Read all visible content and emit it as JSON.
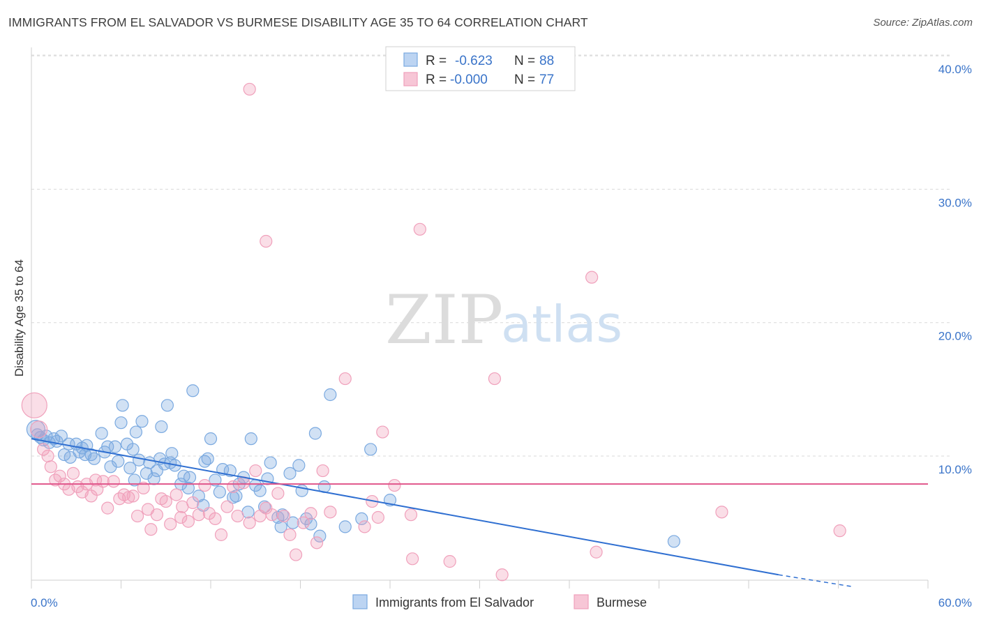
{
  "title": "IMMIGRANTS FROM EL SALVADOR VS BURMESE DISABILITY AGE 35 TO 64 CORRELATION CHART",
  "source": "Source: ZipAtlas.com",
  "watermark": {
    "zip": "ZIP",
    "atlas": "atlas"
  },
  "colors": {
    "blue": "#7aa9e0",
    "blue_line": "#2f6fd1",
    "pink": "#f0a0bb",
    "pink_line": "#e0558a",
    "grid": "#d9d9d9"
  },
  "legend": {
    "rows": [
      {
        "r_label": "R =",
        "r_value": "-0.623",
        "n_label": "N =",
        "n_value": "88"
      },
      {
        "r_label": "R =",
        "r_value": "-0.000",
        "n_label": "N =",
        "n_value": "77"
      }
    ]
  },
  "bottom_legend": [
    "Immigrants from El Salvador",
    "Burmese"
  ],
  "chart_data": {
    "type": "scatter",
    "title": "IMMIGRANTS FROM EL SALVADOR VS BURMESE DISABILITY AGE 35 TO 64 CORRELATION CHART",
    "xlabel": "",
    "ylabel": "Disability Age 35 to 64",
    "xlim": [
      0,
      60
    ],
    "ylim": [
      0,
      42
    ],
    "x_tick_labels": [
      "0.0%",
      "60.0%"
    ],
    "y_ticks": [
      10,
      20,
      30,
      40
    ],
    "y_tick_labels": [
      "10.0%",
      "20.0%",
      "30.0%",
      "40.0%"
    ],
    "grid": true,
    "legend_position": "top-center",
    "series": [
      {
        "name": "Immigrants from El Salvador",
        "color": "#7aa9e0",
        "trend": {
          "x1": 0,
          "y1": 11.3,
          "x2": 50,
          "y2": 1.1,
          "dashed_to_x": 55,
          "dashed_to_y": 0.2
        },
        "points": [
          [
            0.3,
            12.0
          ],
          [
            0.4,
            11.6
          ],
          [
            0.6,
            11.4
          ],
          [
            0.8,
            11.2
          ],
          [
            1.0,
            11.5
          ],
          [
            1.2,
            11.0
          ],
          [
            1.5,
            11.3
          ],
          [
            1.7,
            11.1
          ],
          [
            2.0,
            11.5
          ],
          [
            2.2,
            10.1
          ],
          [
            2.5,
            10.9
          ],
          [
            2.6,
            9.9
          ],
          [
            3.0,
            10.9
          ],
          [
            3.2,
            10.3
          ],
          [
            3.4,
            10.6
          ],
          [
            3.7,
            10.8
          ],
          [
            4.0,
            10.1
          ],
          [
            4.2,
            9.8
          ],
          [
            4.7,
            11.7
          ],
          [
            4.9,
            10.3
          ],
          [
            5.1,
            10.7
          ],
          [
            5.3,
            9.2
          ],
          [
            5.6,
            10.7
          ],
          [
            5.8,
            9.6
          ],
          [
            6.0,
            12.5
          ],
          [
            6.1,
            13.8
          ],
          [
            6.4,
            10.9
          ],
          [
            6.6,
            9.1
          ],
          [
            6.8,
            10.5
          ],
          [
            7.0,
            11.8
          ],
          [
            7.2,
            9.7
          ],
          [
            7.4,
            12.6
          ],
          [
            7.7,
            8.7
          ],
          [
            7.9,
            9.5
          ],
          [
            8.2,
            8.3
          ],
          [
            8.4,
            8.9
          ],
          [
            8.6,
            9.8
          ],
          [
            8.9,
            9.4
          ],
          [
            9.1,
            13.8
          ],
          [
            9.3,
            9.5
          ],
          [
            9.4,
            10.2
          ],
          [
            9.6,
            9.3
          ],
          [
            10.0,
            7.9
          ],
          [
            10.2,
            8.5
          ],
          [
            10.5,
            7.6
          ],
          [
            10.6,
            8.4
          ],
          [
            10.8,
            14.9
          ],
          [
            11.2,
            7.0
          ],
          [
            11.5,
            6.3
          ],
          [
            11.8,
            9.8
          ],
          [
            12.0,
            11.3
          ],
          [
            12.3,
            8.2
          ],
          [
            12.6,
            7.3
          ],
          [
            12.8,
            9.0
          ],
          [
            13.3,
            8.9
          ],
          [
            13.5,
            6.9
          ],
          [
            13.7,
            7.0
          ],
          [
            13.9,
            7.9
          ],
          [
            14.2,
            8.4
          ],
          [
            14.5,
            5.8
          ],
          [
            14.7,
            11.3
          ],
          [
            15.0,
            7.8
          ],
          [
            15.3,
            7.4
          ],
          [
            15.6,
            6.2
          ],
          [
            15.8,
            8.3
          ],
          [
            16.0,
            9.5
          ],
          [
            16.5,
            5.4
          ],
          [
            16.8,
            5.6
          ],
          [
            17.3,
            8.7
          ],
          [
            17.5,
            5.0
          ],
          [
            17.9,
            9.3
          ],
          [
            18.1,
            7.4
          ],
          [
            18.4,
            5.3
          ],
          [
            18.7,
            4.9
          ],
          [
            19.0,
            11.7
          ],
          [
            19.3,
            4.0
          ],
          [
            19.6,
            7.7
          ],
          [
            20.0,
            14.6
          ],
          [
            22.1,
            5.3
          ],
          [
            22.7,
            10.5
          ],
          [
            24.0,
            6.7
          ],
          [
            21.0,
            4.7
          ],
          [
            11.6,
            9.6
          ],
          [
            16.7,
            4.7
          ],
          [
            6.9,
            8.2
          ],
          [
            3.6,
            10.1
          ],
          [
            8.7,
            12.2
          ],
          [
            43.0,
            3.6
          ]
        ]
      },
      {
        "name": "Burmese",
        "color": "#f0a0bb",
        "trend": {
          "x1": 0,
          "y1": 7.9,
          "x2": 60,
          "y2": 7.9
        },
        "points": [
          [
            0.2,
            13.8
          ],
          [
            0.5,
            12.0
          ],
          [
            0.8,
            10.5
          ],
          [
            1.1,
            10.0
          ],
          [
            1.3,
            9.2
          ],
          [
            1.6,
            8.2
          ],
          [
            1.9,
            8.5
          ],
          [
            2.2,
            7.9
          ],
          [
            2.5,
            7.5
          ],
          [
            2.8,
            8.7
          ],
          [
            3.1,
            7.7
          ],
          [
            3.4,
            7.3
          ],
          [
            3.7,
            7.9
          ],
          [
            4.0,
            7.0
          ],
          [
            4.4,
            7.5
          ],
          [
            4.8,
            8.1
          ],
          [
            5.1,
            6.1
          ],
          [
            5.5,
            8.1
          ],
          [
            5.9,
            6.8
          ],
          [
            6.2,
            7.1
          ],
          [
            6.5,
            6.9
          ],
          [
            6.8,
            7.0
          ],
          [
            7.1,
            5.5
          ],
          [
            7.5,
            7.6
          ],
          [
            7.8,
            6.0
          ],
          [
            8.0,
            4.5
          ],
          [
            8.4,
            5.6
          ],
          [
            8.7,
            6.8
          ],
          [
            9.0,
            6.6
          ],
          [
            9.3,
            4.9
          ],
          [
            9.7,
            7.1
          ],
          [
            10.1,
            6.2
          ],
          [
            10.5,
            5.1
          ],
          [
            10.8,
            6.5
          ],
          [
            11.2,
            5.6
          ],
          [
            11.6,
            7.8
          ],
          [
            11.9,
            5.7
          ],
          [
            12.3,
            5.3
          ],
          [
            12.7,
            4.1
          ],
          [
            13.1,
            6.2
          ],
          [
            13.5,
            7.7
          ],
          [
            13.8,
            5.5
          ],
          [
            14.2,
            8.0
          ],
          [
            14.6,
            5.0
          ],
          [
            15.0,
            8.9
          ],
          [
            15.3,
            5.5
          ],
          [
            15.7,
            6.1
          ],
          [
            16.1,
            5.6
          ],
          [
            16.5,
            7.2
          ],
          [
            16.9,
            5.5
          ],
          [
            17.3,
            4.1
          ],
          [
            17.7,
            2.6
          ],
          [
            18.2,
            5.0
          ],
          [
            18.7,
            5.7
          ],
          [
            19.1,
            3.5
          ],
          [
            19.5,
            8.9
          ],
          [
            20.0,
            5.8
          ],
          [
            21.0,
            15.8
          ],
          [
            22.3,
            4.7
          ],
          [
            22.8,
            6.6
          ],
          [
            23.5,
            11.8
          ],
          [
            24.3,
            7.8
          ],
          [
            25.4,
            5.6
          ],
          [
            25.5,
            2.3
          ],
          [
            26.0,
            27.0
          ],
          [
            28.0,
            2.1
          ],
          [
            31.0,
            15.8
          ],
          [
            31.5,
            1.1
          ],
          [
            37.5,
            23.4
          ],
          [
            37.8,
            2.8
          ],
          [
            46.2,
            5.8
          ],
          [
            54.1,
            4.4
          ],
          [
            14.6,
            37.5
          ],
          [
            15.7,
            26.1
          ],
          [
            4.3,
            8.2
          ],
          [
            23.2,
            5.4
          ],
          [
            10.0,
            5.4
          ]
        ]
      }
    ]
  }
}
